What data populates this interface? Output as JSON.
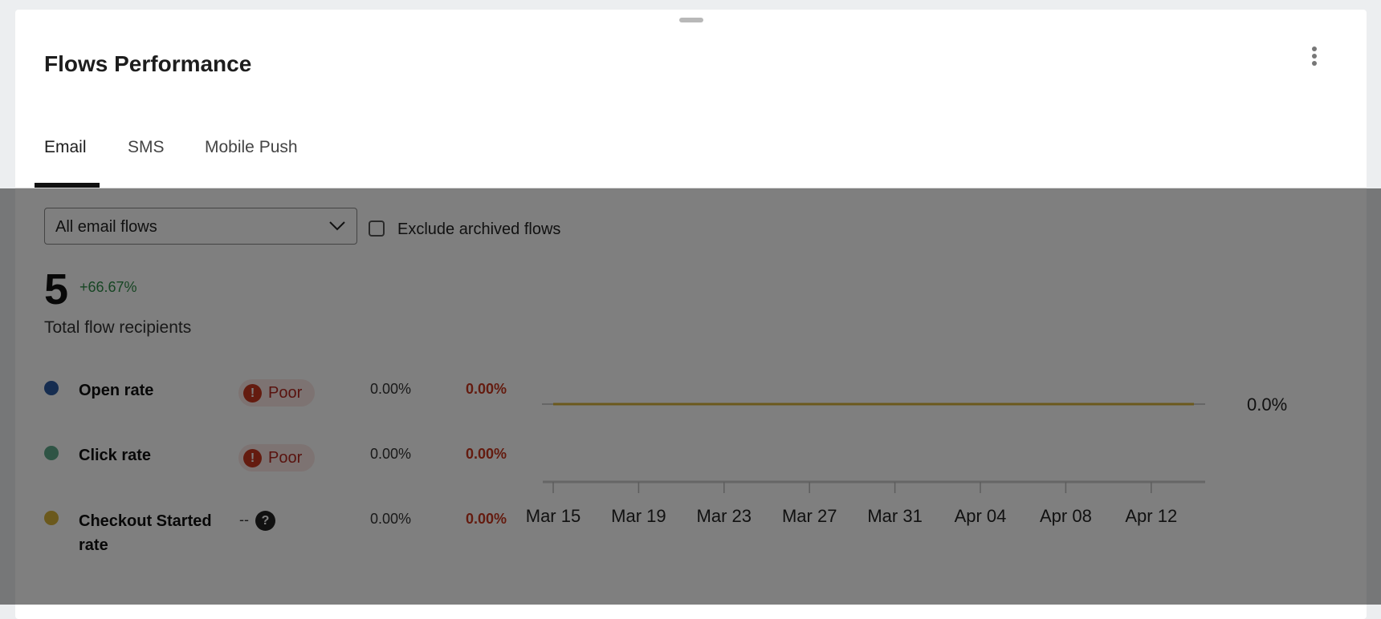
{
  "card": {
    "title": "Flows Performance"
  },
  "tabs": [
    {
      "label": "Email",
      "active": true
    },
    {
      "label": "SMS"
    },
    {
      "label": "Mobile Push"
    }
  ],
  "filters": {
    "flow_select": "All email flows",
    "exclude_archived_label": "Exclude archived flows",
    "exclude_archived_checked": false
  },
  "summary": {
    "value": "5",
    "change": "+66.67%",
    "label": "Total flow recipients"
  },
  "metrics": [
    {
      "label": "Open rate",
      "color": "#2c5aa0",
      "badge": "Poor",
      "value": "0.00%",
      "change": "0.00%"
    },
    {
      "label": "Click rate",
      "color": "#5fa98a",
      "badge": "Poor",
      "value": "0.00%",
      "change": "0.00%"
    },
    {
      "label": "Checkout Started rate",
      "color": "#d6b23a",
      "badge": "--",
      "value": "0.00%",
      "change": "0.00%"
    }
  ],
  "chart_data": {
    "type": "line",
    "x_ticks": [
      "Mar 15",
      "Mar 19",
      "Mar 23",
      "Mar 27",
      "Mar 31",
      "Apr 04",
      "Apr 08",
      "Apr 12"
    ],
    "y_ticks": [
      "0.0%"
    ],
    "series": [
      {
        "color": "#d6b23a",
        "x_start": "Mar 15",
        "x_end": "Apr 14",
        "values": [
          0,
          0,
          0,
          0,
          0,
          0,
          0,
          0,
          0,
          0,
          0,
          0,
          0,
          0,
          0,
          0,
          0,
          0,
          0,
          0,
          0,
          0,
          0,
          0,
          0,
          0,
          0,
          0,
          0,
          0,
          0
        ]
      }
    ],
    "grid": false
  }
}
